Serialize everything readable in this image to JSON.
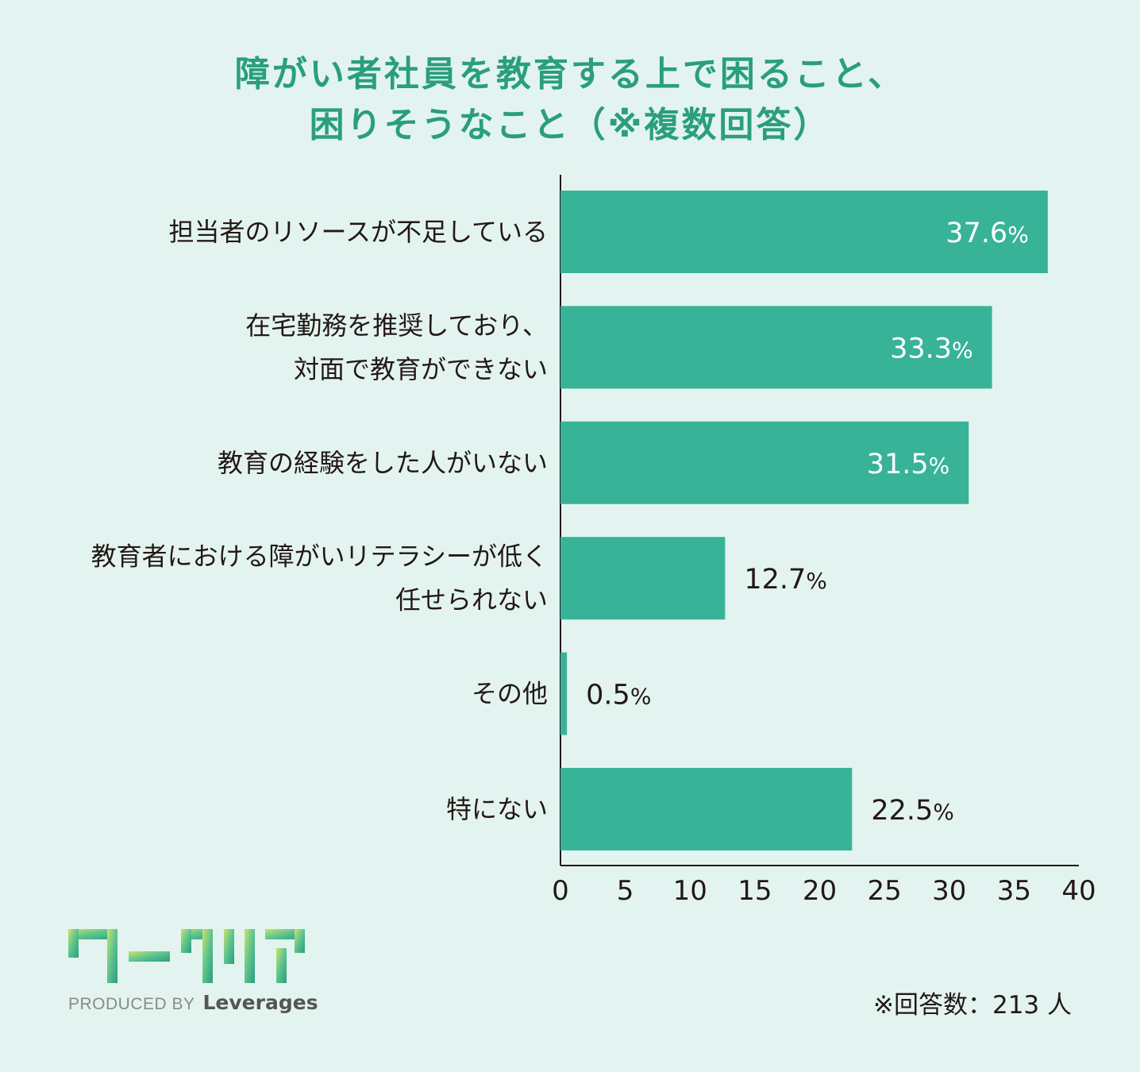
{
  "colors": {
    "background": "#e3f4f0",
    "title": "#2a9e7d",
    "bar": "#38b398",
    "text": "#231815",
    "label_inside": "#ffffff"
  },
  "logo": {
    "name": "ワークリア",
    "produced_by": "PRODUCED BY",
    "brand": "Leverages"
  },
  "footnote": "※回答数：213 人",
  "chart_data": {
    "type": "bar",
    "orientation": "horizontal",
    "title": [
      "障がい者社員を教育する上で困ること、",
      "困りそうなこと（※複数回答）"
    ],
    "categories": [
      [
        "担当者のリソースが不足している"
      ],
      [
        "在宅勤務を推奨しており、",
        "対面で教育ができない"
      ],
      [
        "教育の経験をした人がいない"
      ],
      [
        "教育者における障がいリテラシーが低く",
        "任せられない"
      ],
      [
        "その他"
      ],
      [
        "特にない"
      ]
    ],
    "values": [
      37.6,
      33.3,
      31.5,
      12.7,
      0.5,
      22.5
    ],
    "value_labels": [
      "37.6",
      "33.3",
      "31.5",
      "12.7",
      "0.5",
      "22.5"
    ],
    "unit": "%",
    "xlim": [
      0,
      40
    ],
    "xticks": [
      "0",
      "5",
      "10",
      "15",
      "20",
      "25",
      "30",
      "35",
      "40"
    ],
    "grid": false
  }
}
